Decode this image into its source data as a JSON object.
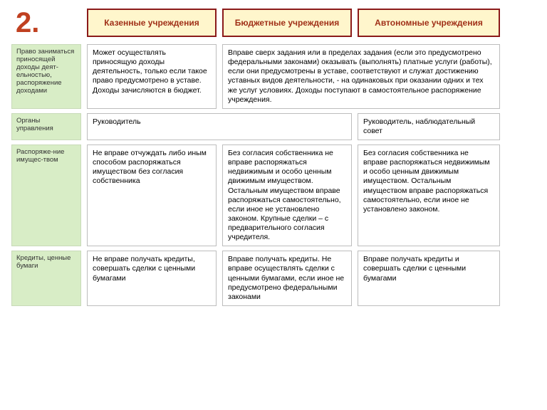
{
  "colors": {
    "number": "#c04020",
    "header_bg": "#fff6cc",
    "header_border": "#8b1a1a",
    "header_text": "#a03018",
    "label_bg": "#d8edc6",
    "label_border": "#c8dab8",
    "cell_border": "#bdbdbd",
    "page_bg": "#ffffff"
  },
  "number": "2.",
  "headers": {
    "h1": "Казенные учреждения",
    "h2": "Бюджетные учреждения",
    "h3": "Автономные учреждения"
  },
  "rows": {
    "r1": {
      "label": "Право заниматься приносящей доходы деят-ельностью, распоряжение доходами",
      "c1": "Может осуществлять приносящую доходы деятельность, только если такое право предусмотрено в уставе. Доходы зачисляются в бюджет.",
      "c23": "Вправе сверх задания или в пределах задания (если это предусмотрено федеральными законами) оказывать (выполнять) платные услуги (работы), если они предусмотрены в уставе, соответствуют и служат достижению уставных видов деятельности, - на одинаковых при оказании одних и тех же услуг условиях. Доходы поступают в самостоятельное распоряжение учреждения."
    },
    "r2": {
      "label": "Органы управления",
      "c12": "Руководитель",
      "c3": "Руководитель, наблюдательный совет"
    },
    "r3": {
      "label": "Распоряже-ние имущес-твом",
      "c1": "Не вправе отчуждать либо иным способом распоряжаться имуществом без согласия собственника",
      "c2": "Без согласия собственника не вправе распоряжаться недвижимым и особо ценным движимым имуществом. Остальным имуществом вправе распоряжаться самостоятельно, если иное не установлено законом. Крупные сделки – с предварительного согласия учредителя.",
      "c3": "Без согласия собственника не вправе распоряжаться недвижимым и особо ценным движимым имуществом. Остальным имуществом вправе распоряжаться самостоятельно, если иное не установлено законом."
    },
    "r4": {
      "label": "Кредиты, ценные бумаги",
      "c1": "Не вправе получать кредиты, совершать сделки с ценными бумагами",
      "c2": "Вправе получать кредиты. Не вправе осуществлять сделки с ценными бумагами, если иное не предусмотрено федеральными законами",
      "c3": "Вправе получать кредиты и совершать сделки с ценными бумагами"
    }
  }
}
